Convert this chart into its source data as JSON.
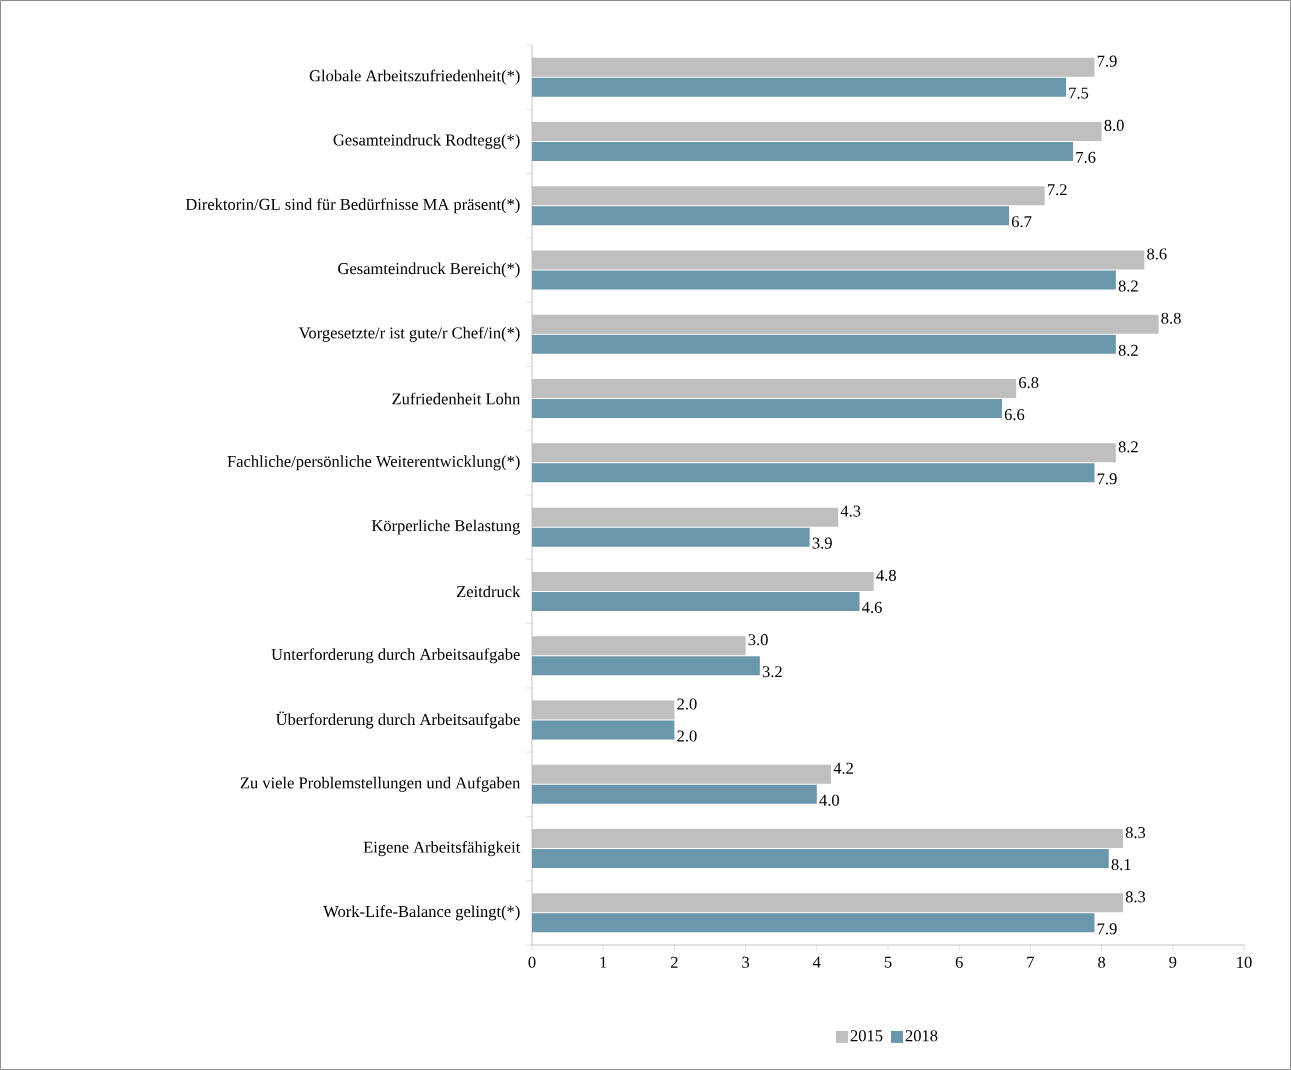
{
  "chart_data": {
    "type": "bar",
    "orientation": "horizontal",
    "categories": [
      "Globale Arbeitszufriedenheit(*)",
      "Gesamteindruck Rodtegg(*)",
      "Direktorin/GL sind für Bedürfnisse MA präsent(*)",
      "Gesamteindruck Bereich(*)",
      "Vorgesetzte/r ist gute/r Chef/in(*)",
      "Zufriedenheit Lohn",
      "Fachliche/persönliche Weiterentwicklung(*)",
      "Körperliche Belastung",
      "Zeitdruck",
      "Unterforderung durch Arbeitsaufgabe",
      "Überforderung durch Arbeitsaufgabe",
      "Zu viele Problemstellungen und Aufgaben",
      "Eigene Arbeitsfähigkeit",
      "Work-Life-Balance gelingt(*)"
    ],
    "series": [
      {
        "name": "2015",
        "color": "#bfbfbf",
        "values": [
          7.9,
          8.0,
          7.2,
          8.6,
          8.8,
          6.8,
          8.2,
          4.3,
          4.8,
          3.0,
          2.0,
          4.2,
          8.3,
          8.3
        ],
        "value_labels": [
          "7.9",
          "8.0",
          "7.2",
          "8.6",
          "8.8",
          "6.8",
          "8.2",
          "4.3",
          "4.8",
          "3.0",
          "2.0",
          "4.2",
          "8.3",
          "8.3"
        ]
      },
      {
        "name": "2018",
        "color": "#6b97ac",
        "values": [
          7.5,
          7.6,
          6.7,
          8.2,
          8.2,
          6.6,
          7.9,
          3.9,
          4.6,
          3.2,
          2.0,
          4.0,
          8.1,
          7.9
        ],
        "value_labels": [
          "7.5",
          "7.6",
          "6.7",
          "8.2",
          "8.2",
          "6.6",
          "7.9",
          "3.9",
          "4.6",
          "3.2",
          "2.0",
          "4.0",
          "8.1",
          "7.9"
        ]
      }
    ],
    "xlim": [
      0,
      10
    ],
    "xticks": [
      0,
      1,
      2,
      3,
      4,
      5,
      6,
      7,
      8,
      9,
      10
    ],
    "legend": "bottom",
    "grid": false
  }
}
